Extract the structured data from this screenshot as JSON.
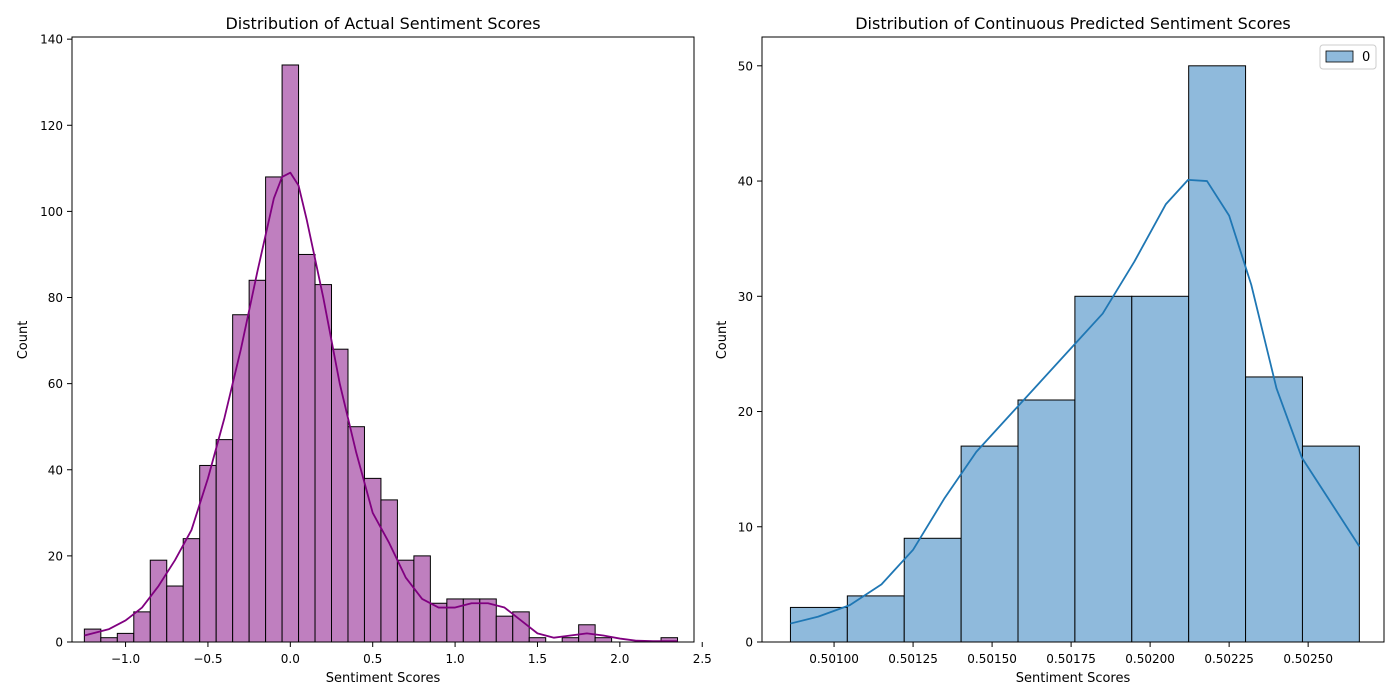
{
  "chart_data": [
    {
      "type": "histogram",
      "title": "Distribution of Actual Sentiment Scores",
      "xlabel": "Sentiment Scores",
      "ylabel": "Count",
      "xlim": [
        -1.325,
        2.45
      ],
      "ylim": [
        0,
        140.5
      ],
      "xticks": [
        -1.0,
        -0.5,
        0.0,
        0.5,
        1.0,
        1.5,
        2.0,
        2.5
      ],
      "xtick_labels": [
        "−1.0",
        "−0.5",
        "0.0",
        "0.5",
        "1.0",
        "1.5",
        "2.0",
        "2.5"
      ],
      "yticks": [
        0,
        20,
        40,
        60,
        80,
        100,
        120,
        140
      ],
      "bin_start": -1.25,
      "bin_width": 0.1,
      "counts": [
        3,
        1,
        2,
        7,
        19,
        13,
        24,
        41,
        47,
        76,
        84,
        108,
        134,
        90,
        83,
        68,
        50,
        38,
        33,
        19,
        20,
        9,
        10,
        10,
        10,
        6,
        7,
        1,
        0,
        1,
        4,
        1,
        0,
        0,
        0,
        1
      ],
      "kde": {
        "x": [
          -1.25,
          -1.1,
          -1.0,
          -0.9,
          -0.8,
          -0.7,
          -0.6,
          -0.5,
          -0.4,
          -0.3,
          -0.2,
          -0.1,
          -0.05,
          0.0,
          0.05,
          0.1,
          0.2,
          0.3,
          0.4,
          0.5,
          0.6,
          0.7,
          0.8,
          0.9,
          1.0,
          1.1,
          1.2,
          1.3,
          1.4,
          1.5,
          1.6,
          1.7,
          1.8,
          1.9,
          2.0,
          2.1,
          2.2,
          2.35
        ],
        "y": [
          1.5,
          3,
          5,
          8,
          13,
          19,
          26,
          38,
          52,
          68,
          86,
          103,
          108,
          109,
          106,
          98,
          80,
          60,
          44,
          30,
          23,
          15,
          10,
          8,
          8,
          9,
          9,
          8,
          5,
          2,
          1,
          1.5,
          2,
          1.5,
          0.8,
          0.3,
          0.2,
          0.2
        ]
      },
      "colors": {
        "bar": "#bf7fbf",
        "edge": "#000000",
        "kde": "#800080"
      },
      "grid": false
    },
    {
      "type": "histogram",
      "title": "Distribution of Continuous Predicted Sentiment Scores",
      "xlabel": "Sentiment Scores",
      "ylabel": "Count",
      "xlim": [
        0.500772,
        0.50274
      ],
      "ylim": [
        0,
        52.5
      ],
      "xticks": [
        0.501,
        0.50125,
        0.5015,
        0.50175,
        0.502,
        0.50225,
        0.5025
      ],
      "xtick_labels": [
        "0.50100",
        "0.50125",
        "0.50150",
        "0.50175",
        "0.50200",
        "0.50225",
        "0.50250"
      ],
      "yticks": [
        0,
        10,
        20,
        30,
        40,
        50
      ],
      "bin_start": 0.500862,
      "bin_width": 0.00018,
      "counts": [
        3,
        4,
        9,
        17,
        21,
        30,
        30,
        50,
        23,
        17
      ],
      "kde": {
        "x": [
          0.500862,
          0.50095,
          0.50105,
          0.50115,
          0.50125,
          0.50135,
          0.50145,
          0.50155,
          0.50165,
          0.50175,
          0.50185,
          0.50195,
          0.50205,
          0.50212,
          0.50218,
          0.50225,
          0.50232,
          0.5024,
          0.50248,
          0.502662
        ],
        "y": [
          1.6,
          2.2,
          3.2,
          5,
          8,
          12.5,
          16.5,
          19.5,
          22.5,
          25.5,
          28.5,
          33,
          38,
          40.1,
          40,
          37,
          31,
          22,
          16,
          8.3
        ]
      },
      "colors": {
        "bar": "#8fbadc",
        "edge": "#000000",
        "kde": "#1f77b4"
      },
      "legend": {
        "position": "top-right",
        "entries": [
          "0"
        ]
      },
      "grid": false
    }
  ]
}
